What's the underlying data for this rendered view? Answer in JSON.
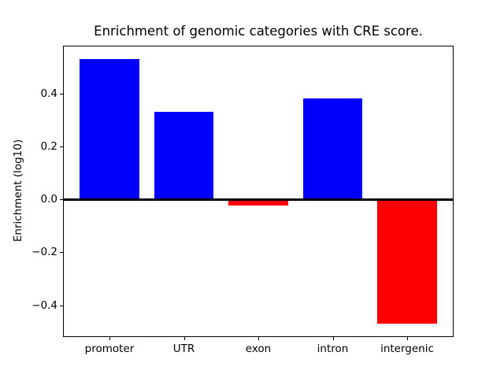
{
  "chart_data": {
    "type": "bar",
    "title": "Enrichment of genomic categories with CRE score.",
    "xlabel": "",
    "ylabel": "Enrichment (log10)",
    "categories": [
      "promoter",
      "UTR",
      "exon",
      "intron",
      "intergenic"
    ],
    "values": [
      0.53,
      0.33,
      -0.025,
      0.38,
      -0.47
    ],
    "bar_colors": [
      "#0000ff",
      "#0000ff",
      "#ff0000",
      "#0000ff",
      "#ff0000"
    ],
    "positive_color": "#0000ff",
    "negative_color": "#ff0000",
    "ylim": [
      -0.52,
      0.58
    ],
    "yticks": [
      -0.4,
      -0.2,
      0.0,
      0.2,
      0.4
    ],
    "ytick_labels": [
      "−0.4",
      "−0.2",
      "0.0",
      "0.2",
      "0.4"
    ],
    "bar_width_fraction": 0.8,
    "grid": false,
    "legend": false,
    "zero_line": true,
    "background_color": "#ffffff",
    "frame_color": "#000000"
  }
}
